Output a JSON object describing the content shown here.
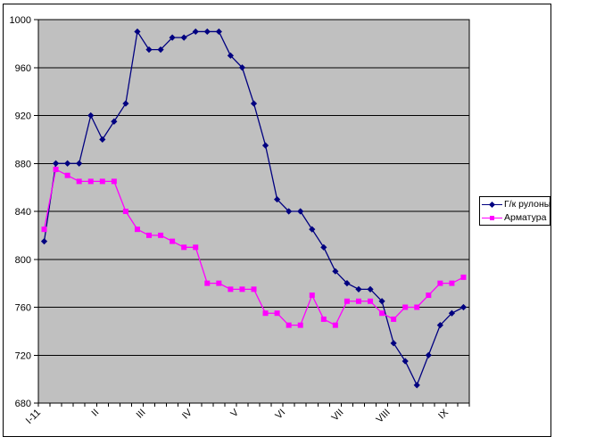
{
  "window": {
    "background_color": "#FFFFFF",
    "chart_border_color": "#000000"
  },
  "chart_data": {
    "type": "line",
    "title": "",
    "plot_area_color": "#C0C0C0",
    "gridline_color": "#000000",
    "axis_color": "#000000",
    "text_color": "#000000",
    "legend_position": "right",
    "grid": true,
    "y_axis": {
      "min": 680,
      "max": 1000,
      "step": 40,
      "tick_labels": [
        "1000",
        "960",
        "920",
        "880",
        "840",
        "800",
        "760",
        "720",
        "680"
      ]
    },
    "x_axis": {
      "point_count": 37,
      "labels": [
        "I-11",
        "II",
        "III",
        "IV",
        "V",
        "VI",
        "VII",
        "VIII",
        "IX"
      ],
      "label_boundary_indices": [
        0,
        5,
        9,
        13,
        17,
        21,
        26,
        30,
        35
      ]
    },
    "series": [
      {
        "name": "Г/к рулоны",
        "color": "#000080",
        "marker": "diamond",
        "values": [
          815,
          880,
          880,
          880,
          920,
          900,
          915,
          930,
          990,
          975,
          975,
          985,
          985,
          990,
          990,
          990,
          970,
          960,
          930,
          895,
          850,
          840,
          840,
          825,
          810,
          790,
          780,
          775,
          775,
          765,
          730,
          715,
          695,
          720,
          745,
          755,
          760
        ]
      },
      {
        "name": "Арматура",
        "color": "#FF00FF",
        "marker": "square",
        "values": [
          825,
          875,
          870,
          865,
          865,
          865,
          865,
          840,
          825,
          820,
          820,
          815,
          810,
          810,
          780,
          780,
          775,
          775,
          775,
          755,
          755,
          745,
          745,
          770,
          750,
          745,
          765,
          765,
          765,
          755,
          750,
          760,
          760,
          770,
          780,
          780,
          785
        ]
      }
    ]
  }
}
